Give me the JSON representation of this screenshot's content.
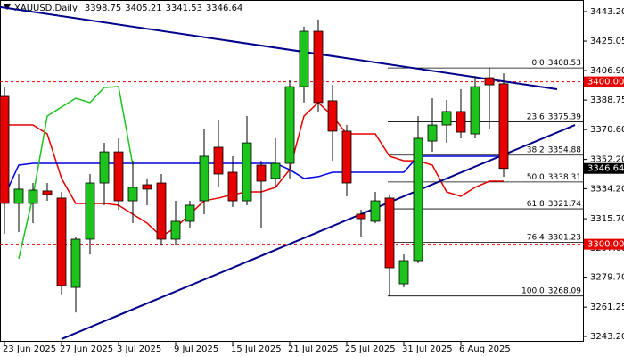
{
  "chart_data": {
    "type": "candlestick",
    "symbol": "XAUUSD,Daily",
    "header_ohlc": [
      3398.75,
      3405.21,
      3341.53,
      3346.64
    ],
    "categories": [
      "23 Jun 2025",
      null,
      null,
      null,
      "27 Jun 2025",
      null,
      null,
      null,
      "3 Jul 2025",
      null,
      null,
      null,
      "9 Jul 2025",
      null,
      null,
      null,
      "15 Jul 2025",
      null,
      null,
      null,
      "21 Jul 2025",
      null,
      null,
      null,
      "25 Jul 2025",
      null,
      null,
      null,
      "31 Jul 2025",
      null,
      null,
      null,
      "6 Aug 2025",
      null,
      null,
      null
    ],
    "open": [
      3391.0,
      3325.1,
      3325.1,
      3332.8,
      3328.4,
      3273.4,
      3303.1,
      3337.7,
      3356.9,
      3326.7,
      3336.6,
      3337.7,
      3303.1,
      3314.1,
      3326.7,
      3359.7,
      3344.3,
      3326.7,
      3348.7,
      3340.5,
      3349.8,
      3397.0,
      3431.1,
      3388.3,
      3369.6,
      3318.5,
      3314.1,
      3328.4,
      3275.6,
      3289.9,
      3363.5,
      3373.4,
      3381.7,
      3367.9,
      3402.5,
      3398.75
    ],
    "high": [
      3396.5,
      3343.2,
      3337.7,
      3337.7,
      3332.2,
      3304.7,
      3343.2,
      3362.4,
      3365.2,
      3351.4,
      3340.5,
      3343.2,
      3326.7,
      3326.7,
      3370.7,
      3376.2,
      3354.2,
      3378.9,
      3351.4,
      3365.2,
      3400.9,
      3433.9,
      3438.3,
      3398.1,
      3373.4,
      3321.2,
      3332.2,
      3330.6,
      3293.7,
      3378.9,
      3389.9,
      3388.8,
      3395.4,
      3403.6,
      3408.53,
      3405.21
    ],
    "low": [
      3306.4,
      3307.5,
      3313.0,
      3326.7,
      3269.0,
      3258.0,
      3293.7,
      3324.0,
      3321.2,
      3313.0,
      3324.0,
      3299.2,
      3299.2,
      3310.2,
      3318.5,
      3335.0,
      3322.9,
      3324.0,
      3310.2,
      3335.0,
      3340.5,
      3387.2,
      3381.7,
      3351.4,
      3329.5,
      3304.7,
      3313.0,
      3268.09,
      3273.4,
      3288.3,
      3356.9,
      3362.4,
      3365.2,
      3365.2,
      3370.7,
      3341.53
    ],
    "close": [
      3325.1,
      3333.9,
      3333.3,
      3330.6,
      3274.5,
      3303.1,
      3337.7,
      3356.9,
      3326.7,
      3335.0,
      3333.9,
      3303.1,
      3314.1,
      3324.0,
      3354.2,
      3343.2,
      3326.7,
      3362.4,
      3338.8,
      3349.8,
      3397.0,
      3431.1,
      3387.2,
      3369.6,
      3337.7,
      3315.7,
      3326.7,
      3285.5,
      3289.9,
      3365.2,
      3373.4,
      3381.7,
      3369.0,
      3397.0,
      3398.1,
      3346.64
    ],
    "up_color": "#1ec31e",
    "down_color": "#e60000",
    "indicators": [
      {
        "color": "#e60000",
        "values": [
          3373.4,
          3373.4,
          3373.4,
          3367.9,
          3340.5,
          3325.1,
          3325.1,
          3325.1,
          3324.0,
          3318.5,
          3313.0,
          3304.7,
          3310.2,
          3318.5,
          3326.7,
          3328.4,
          3330.6,
          3332.2,
          3332.2,
          3335.0,
          3345.9,
          3378.9,
          3387.2,
          3378.9,
          3367.9,
          3367.9,
          3367.9,
          3354.2,
          3351.4,
          3351.4,
          3348.7,
          3332.2,
          3329.5,
          3335.0,
          3338.8,
          3338.8
        ]
      },
      {
        "color": "#0000e6",
        "values": [
          3329.5,
          3348.7,
          3349.8,
          3349.8,
          3349.8,
          3349.8,
          3349.8,
          3349.8,
          3349.8,
          3349.8,
          3349.8,
          3349.8,
          3349.8,
          3349.8,
          3349.8,
          3349.8,
          3349.8,
          3349.8,
          3349.8,
          3349.8,
          3345.9,
          3340.5,
          3341.6,
          3344.3,
          3344.3,
          3344.3,
          3344.3,
          3344.3,
          3344.3,
          3354.2,
          3354.2,
          3354.2,
          3354.2,
          3354.2,
          3354.2,
          3354.2
        ]
      },
      {
        "color": "#1ec31e",
        "values": [
          null,
          3291.0,
          3329.5,
          3378.9,
          3384.4,
          3389.9,
          3387.2,
          3396.5,
          3397.0,
          3348.7,
          null,
          null,
          null,
          null,
          null,
          null,
          null,
          null,
          null,
          null,
          null,
          null,
          null,
          null,
          null,
          null,
          null,
          null,
          null,
          null,
          null,
          null,
          null,
          null,
          null,
          null
        ]
      }
    ],
    "trendlines": [
      {
        "color": "#00008b",
        "x": [
          4,
          40
        ],
        "y": [
          3241.6,
          3373.4
        ]
      },
      {
        "color": "#00008b",
        "x": [
          -0.3,
          38.75
        ],
        "y": [
          3446,
          3395.4
        ]
      }
    ],
    "fibonacci": {
      "start": 27,
      "levels": [
        {
          "ratio": "0.0",
          "price": 3408.53
        },
        {
          "ratio": "23.6",
          "price": 3375.39
        },
        {
          "ratio": "38.2",
          "price": 3354.88
        },
        {
          "ratio": "50.0",
          "price": 3338.31
        },
        {
          "ratio": "61.8",
          "price": 3321.74
        },
        {
          "ratio": "76.4",
          "price": 3301.23
        },
        {
          "ratio": "100.0",
          "price": 3268.09
        }
      ]
    },
    "levels": [
      {
        "value": 3400,
        "label": "3400.00",
        "color": "#e60000"
      },
      {
        "value": 3300,
        "label": "3300.00",
        "color": "#e60000"
      }
    ],
    "last_price": 3346.64,
    "ylim": [
      3243.2,
      3443.2
    ],
    "yticks": [
      {
        "value": 3443.2,
        "label": "3443.20"
      },
      3425.05,
      {
        "value": 3406.9,
        "label": "3406.90"
      },
      3388.75,
      {
        "value": 3370.6,
        "label": "3370.60"
      },
      {
        "value": 3352.2,
        "label": "3352.20"
      },
      {
        "value": 3334.2,
        "label": "3334.20"
      },
      {
        "value": 3315.7,
        "label": "3315.70"
      },
      {
        "value": 3297.6,
        "label": "3297.60"
      },
      {
        "value": 3279.7,
        "label": "3279.70"
      },
      3261.25,
      {
        "value": 3243.2,
        "label": "3243.20"
      }
    ]
  }
}
